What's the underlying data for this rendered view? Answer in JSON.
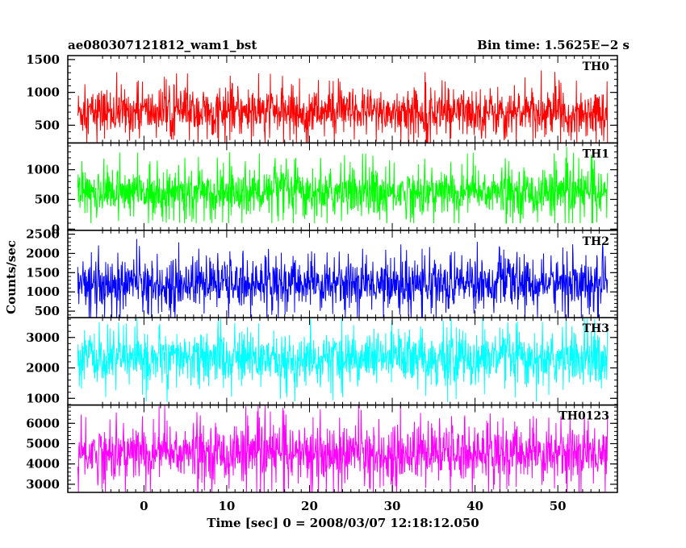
{
  "header": {
    "left": "ae080307121812_wam1_bst",
    "right": "Bin time: 1.5625E−2 s"
  },
  "chart_data": {
    "type": "line",
    "title": "ae080307121812_wam1_bst",
    "subtitle": "Bin time: 1.5625E−2 s",
    "xlabel": "Time [sec] 0 = 2008/03/07 12:18:12.050",
    "ylabel": "Counts/sec",
    "xlim": [
      -9.2,
      57.2
    ],
    "data_xrange": [
      -8.0,
      56.0
    ],
    "x_ticks": [
      0,
      10,
      20,
      30,
      40,
      50
    ],
    "grid": false,
    "panels": [
      {
        "name": "TH0",
        "color": "#ff0000",
        "ylim": [
          230,
          1560
        ],
        "y_ticks": [
          500,
          1000,
          1500
        ],
        "mean": 700,
        "sd": 180,
        "min": 230,
        "max": 1560
      },
      {
        "name": "TH1",
        "color": "#00ff00",
        "ylim": [
          -20,
          1450
        ],
        "y_ticks": [
          0,
          500,
          1000
        ],
        "mean": 620,
        "sd": 200,
        "min": 100,
        "max": 1450
      },
      {
        "name": "TH2",
        "color": "#0000ff",
        "ylim": [
          330,
          2600
        ],
        "y_ticks": [
          500,
          1000,
          1500,
          2000,
          2500
        ],
        "mean": 1230,
        "sd": 320,
        "min": 330,
        "max": 2600
      },
      {
        "name": "TH3",
        "color": "#00ffff",
        "ylim": [
          780,
          3650
        ],
        "y_ticks": [
          1000,
          2000,
          3000
        ],
        "mean": 2300,
        "sd": 420,
        "min": 780,
        "max": 3650
      },
      {
        "name": "TH0123",
        "color": "#ff00ff",
        "ylim": [
          2600,
          6900
        ],
        "y_ticks": [
          3000,
          4000,
          5000,
          6000
        ],
        "mean": 4550,
        "sd": 700,
        "min": 2600,
        "max": 6900
      }
    ]
  }
}
